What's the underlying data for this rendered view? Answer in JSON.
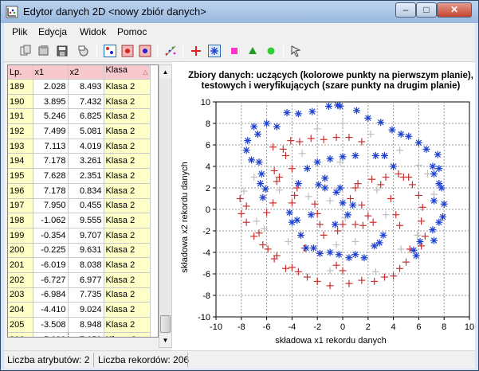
{
  "window": {
    "title": "Edytor danych 2D <nowy zbiór danych>"
  },
  "menu": [
    {
      "label": "Plik"
    },
    {
      "label": "Edycja"
    },
    {
      "label": "Widok"
    },
    {
      "label": "Pomoc"
    }
  ],
  "toolbar": {
    "icons": [
      "new-file-icon",
      "open-file-icon",
      "save-file-icon",
      "dataset-icon",
      "chart-view-icon",
      "class-red-icon",
      "class-blue-icon",
      "class-pink-icon",
      "generate-points-icon",
      "add-point-icon",
      "select-point-icon",
      "square-class-icon",
      "triangle-class-icon",
      "circle-class-icon",
      "pointer-tool-icon"
    ],
    "colors": {
      "red_cross": "#e02020",
      "blue_star": "#1c3fcf",
      "pink_square": "#ff33cc",
      "green_triangle": "#229922",
      "green_circle": "#33cc33"
    }
  },
  "table": {
    "headers": [
      "Lp.",
      "x1",
      "x2",
      "Klasa"
    ],
    "rows": [
      [
        "189",
        "2.028",
        "8.493",
        "Klasa 2"
      ],
      [
        "190",
        "3.895",
        "7.432",
        "Klasa 2"
      ],
      [
        "191",
        "5.246",
        "6.825",
        "Klasa 2"
      ],
      [
        "192",
        "7.499",
        "5.081",
        "Klasa 2"
      ],
      [
        "193",
        "7.113",
        "4.019",
        "Klasa 2"
      ],
      [
        "194",
        "7.178",
        "3.261",
        "Klasa 2"
      ],
      [
        "195",
        "7.628",
        "2.351",
        "Klasa 2"
      ],
      [
        "196",
        "7.178",
        "0.834",
        "Klasa 2"
      ],
      [
        "197",
        "7.950",
        "0.455",
        "Klasa 2"
      ],
      [
        "198",
        "-1.062",
        "9.555",
        "Klasa 2"
      ],
      [
        "199",
        "-0.354",
        "9.707",
        "Klasa 2"
      ],
      [
        "200",
        "-0.225",
        "9.631",
        "Klasa 2"
      ],
      [
        "201",
        "-6.019",
        "8.038",
        "Klasa 2"
      ],
      [
        "202",
        "-6.727",
        "6.977",
        "Klasa 2"
      ],
      [
        "203",
        "-6.984",
        "7.735",
        "Klasa 2"
      ],
      [
        "204",
        "-4.410",
        "9.024",
        "Klasa 2"
      ],
      [
        "205",
        "-3.508",
        "8.948",
        "Klasa 2"
      ],
      [
        "206",
        "-5.182",
        "7.659",
        "Klasa 2"
      ]
    ]
  },
  "chart_data": {
    "type": "scatter",
    "title": "Zbiory danych: uczących (kolorowe punkty na pierwszym planie), testowych i weryfikujących (szare punkty na drugim planie)",
    "xlabel": "składowa x1 rekordu danych",
    "ylabel": "składowa x2 rekordu danych",
    "xlim": [
      -10,
      10
    ],
    "ylim": [
      -10,
      10
    ],
    "xticks": [
      -10,
      -8,
      -6,
      -4,
      -2,
      0,
      2,
      4,
      6,
      8,
      10
    ],
    "yticks": [
      -10,
      -8,
      -6,
      -4,
      -2,
      0,
      2,
      4,
      6,
      8,
      10
    ],
    "grid": true,
    "series": [
      {
        "marker": "star",
        "color": "#1c3fcf",
        "points": [
          [
            -1.1,
            9.6
          ],
          [
            -0.4,
            9.7
          ],
          [
            -0.2,
            9.6
          ],
          [
            -2.4,
            9.1
          ],
          [
            -3.5,
            8.9
          ],
          [
            -4.4,
            9.0
          ],
          [
            -5.2,
            7.7
          ],
          [
            -6.0,
            8.0
          ],
          [
            -6.7,
            7.0
          ],
          [
            -7.0,
            7.7
          ],
          [
            -7.5,
            6.4
          ],
          [
            -7.6,
            5.5
          ],
          [
            -7.2,
            4.6
          ],
          [
            -6.6,
            4.4
          ],
          [
            -6.4,
            3.3
          ],
          [
            -6.5,
            2.4
          ],
          [
            -6.1,
            1.9
          ],
          [
            -6.3,
            1.1
          ],
          [
            1.1,
            9.2
          ],
          [
            2.0,
            8.5
          ],
          [
            3.0,
            8.1
          ],
          [
            3.9,
            7.4
          ],
          [
            4.6,
            7.0
          ],
          [
            5.2,
            6.8
          ],
          [
            6.0,
            6.2
          ],
          [
            6.6,
            5.6
          ],
          [
            7.5,
            5.1
          ],
          [
            7.1,
            4.0
          ],
          [
            7.6,
            3.8
          ],
          [
            7.2,
            3.3
          ],
          [
            7.6,
            2.4
          ],
          [
            7.8,
            2.0
          ],
          [
            7.2,
            0.8
          ],
          [
            8.0,
            0.5
          ],
          [
            7.9,
            -0.7
          ],
          [
            7.6,
            -1.2
          ],
          [
            7.1,
            -1.9
          ],
          [
            7.2,
            -2.9
          ],
          [
            6.1,
            -3.0
          ],
          [
            5.6,
            -3.8
          ],
          [
            5.8,
            -4.3
          ],
          [
            -4.2,
            -0.3
          ],
          [
            -4.0,
            -1.2
          ],
          [
            -3.6,
            -1.0
          ],
          [
            -3.3,
            -2.4
          ],
          [
            -2.9,
            -3.6
          ],
          [
            -2.3,
            -3.6
          ],
          [
            -1.8,
            -4.1
          ],
          [
            -1.0,
            -4.0
          ],
          [
            -0.3,
            -4.2
          ],
          [
            0.5,
            -4.5
          ],
          [
            1.0,
            -4.2
          ],
          [
            1.7,
            -4.5
          ],
          [
            2.5,
            -3.4
          ],
          [
            2.9,
            -3.1
          ],
          [
            3.2,
            -2.4
          ],
          [
            -3.5,
            2.4
          ],
          [
            -2.8,
            3.8
          ],
          [
            -2.0,
            4.4
          ],
          [
            -1.0,
            4.7
          ],
          [
            0.0,
            4.9
          ],
          [
            1.0,
            5.0
          ],
          [
            -0.5,
            1.6
          ],
          [
            -0.2,
            2.0
          ],
          [
            -1.4,
            2.0
          ],
          [
            -1.9,
            2.3
          ],
          [
            -1.4,
            2.9
          ],
          [
            4.0,
            4.0
          ],
          [
            3.3,
            5.0
          ],
          [
            2.6,
            5.0
          ],
          [
            -2.5,
            -0.5
          ],
          [
            -0.6,
            -1.4
          ],
          [
            0.4,
            -0.5
          ],
          [
            0.8,
            0.4
          ],
          [
            0.0,
            0.6
          ]
        ]
      },
      {
        "marker": "plus",
        "color": "#c83030",
        "points": [
          [
            -5.5,
            5.8
          ],
          [
            -4.7,
            5.6
          ],
          [
            -4.1,
            6.4
          ],
          [
            -3.4,
            6.3
          ],
          [
            -2.5,
            6.6
          ],
          [
            -1.5,
            6.5
          ],
          [
            -0.5,
            6.7
          ],
          [
            0.5,
            6.7
          ],
          [
            1.5,
            6.3
          ],
          [
            -4.5,
            5.0
          ],
          [
            -5.4,
            3.6
          ],
          [
            -5.0,
            3.0
          ],
          [
            -4.0,
            3.8
          ],
          [
            -5.2,
            2.6
          ],
          [
            -3.6,
            2.0
          ],
          [
            -3.8,
            1.3
          ],
          [
            -4.0,
            0.6
          ],
          [
            -8.1,
            1.0
          ],
          [
            -7.6,
            0.3
          ],
          [
            -8.0,
            -0.4
          ],
          [
            -7.6,
            -1.2
          ],
          [
            -7.0,
            -2.5
          ],
          [
            -6.6,
            -2.2
          ],
          [
            -6.3,
            -3.3
          ],
          [
            -5.9,
            -3.7
          ],
          [
            -5.2,
            -4.3
          ],
          [
            -5.4,
            -4.6
          ],
          [
            -4.5,
            -5.5
          ],
          [
            -4.0,
            -5.4
          ],
          [
            -3.5,
            -5.8
          ],
          [
            -2.8,
            -6.3
          ],
          [
            -2.0,
            -6.7
          ],
          [
            -1.0,
            -7.1
          ],
          [
            0.5,
            -6.9
          ],
          [
            1.5,
            -6.6
          ],
          [
            2.5,
            -6.7
          ],
          [
            3.3,
            -6.3
          ],
          [
            4.0,
            -6.2
          ],
          [
            4.5,
            -5.5
          ],
          [
            5.0,
            -4.9
          ],
          [
            5.3,
            -3.7
          ],
          [
            6.2,
            -3.4
          ],
          [
            6.5,
            -2.5
          ],
          [
            6.2,
            -1.1
          ],
          [
            6.3,
            0.2
          ],
          [
            6.0,
            1.3
          ],
          [
            5.5,
            2.3
          ],
          [
            5.2,
            3.0
          ],
          [
            4.8,
            3.0
          ],
          [
            4.4,
            3.3
          ],
          [
            3.4,
            3.0
          ],
          [
            3.0,
            2.3
          ],
          [
            2.3,
            2.8
          ],
          [
            1.2,
            2.4
          ],
          [
            1.0,
            2.0
          ],
          [
            0.6,
            1.0
          ],
          [
            1.5,
            0.4
          ],
          [
            2.0,
            -0.6
          ],
          [
            1.0,
            -1.4
          ],
          [
            0.0,
            -1.4
          ],
          [
            -0.4,
            -2.0
          ],
          [
            -1.5,
            -2.4
          ],
          [
            -1.8,
            -1.4
          ],
          [
            -2.0,
            -0.4
          ],
          [
            -2.2,
            0.5
          ],
          [
            1.6,
            -1.5
          ],
          [
            2.4,
            -1.2
          ],
          [
            4.2,
            -0.5
          ],
          [
            3.8,
            1.0
          ],
          [
            4.5,
            -1.5
          ],
          [
            -3.0,
            -3.6
          ],
          [
            -0.5,
            -5.2
          ],
          [
            0.0,
            -5.7
          ],
          [
            -5.5,
            0.6
          ],
          [
            -6.0,
            -0.3
          ]
        ]
      },
      {
        "marker": "plus",
        "color": "#bfbfbf",
        "points": [
          [
            -7.8,
            1.7
          ],
          [
            -7.0,
            3.0
          ],
          [
            -6.8,
            -1.1
          ],
          [
            -6.2,
            -1.8
          ],
          [
            -4.3,
            -3.0
          ],
          [
            -1.0,
            -5.7
          ],
          [
            2.6,
            -5.8
          ],
          [
            5.9,
            -2.4
          ],
          [
            7.2,
            1.4
          ],
          [
            6.7,
            3.3
          ],
          [
            6.0,
            4.1
          ],
          [
            4.5,
            5.5
          ],
          [
            2.2,
            7.0
          ],
          [
            0.0,
            8.0
          ],
          [
            -2.0,
            7.5
          ],
          [
            -3.2,
            5.2
          ],
          [
            -2.7,
            1.2
          ],
          [
            -1.0,
            0.8
          ],
          [
            0.2,
            -0.8
          ],
          [
            2.7,
            1.8
          ],
          [
            3.4,
            -0.5
          ],
          [
            -0.2,
            4.4
          ],
          [
            -5.0,
            1.8
          ],
          [
            4.6,
            -3.7
          ],
          [
            -0.5,
            -3.3
          ],
          [
            1.0,
            -3.0
          ]
        ]
      }
    ]
  },
  "status": {
    "attributes": "Liczba atrybutów: 2",
    "records": "Liczba rekordów: 206"
  }
}
